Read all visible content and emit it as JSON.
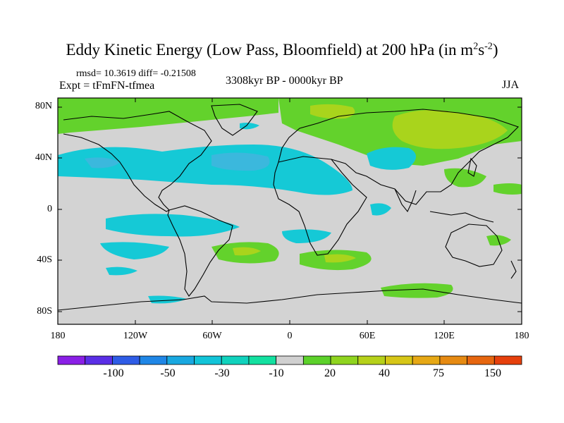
{
  "title": {
    "main": "Eddy Kinetic Energy (Low Pass, Bloomfield) at 200 hPa (in m",
    "sup1": "2",
    "mid": "s",
    "sup2": "-2",
    "end": ")"
  },
  "stats": "rmsd= 10.3619  diff= -0.21508",
  "expt": "Expt = tFmFN-tfmea",
  "period": "3308kyr BP - 0000kyr BP",
  "season": "JJA",
  "lat_ticks": [
    "80N",
    "40N",
    "0",
    "40S",
    "80S"
  ],
  "lon_ticks": [
    "180",
    "120W",
    "60W",
    "0",
    "60E",
    "120E",
    "180"
  ],
  "colorbar": {
    "labels": [
      "-100",
      "-50",
      "-30",
      "-10",
      "20",
      "40",
      "75",
      "150"
    ],
    "colors": [
      "#8a1fe6",
      "#5a2ee6",
      "#2e5ce6",
      "#1f86e6",
      "#19a8e0",
      "#12c4d8",
      "#10d2bd",
      "#13e0a0",
      "#d0d0d0",
      "#5cd12a",
      "#8fd41f",
      "#b6d11a",
      "#d6c617",
      "#e6a815",
      "#e68a12",
      "#e6660f",
      "#e6400c"
    ]
  }
}
